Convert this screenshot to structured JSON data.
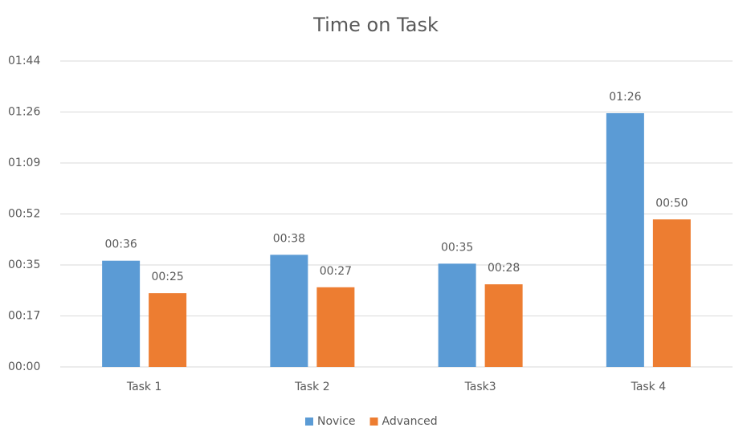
{
  "chart_data": {
    "type": "bar",
    "title": "Time on Task",
    "categories": [
      "Task 1",
      "Task 2",
      "Task3",
      "Task 4"
    ],
    "series": [
      {
        "name": "Novice",
        "color": "#5b9bd5",
        "values": [
          36,
          38,
          35,
          86
        ],
        "value_labels": [
          "00:36",
          "00:38",
          "00:35",
          "01:26"
        ]
      },
      {
        "name": "Advanced",
        "color": "#ed7d31",
        "values": [
          25,
          27,
          28,
          50
        ],
        "value_labels": [
          "00:25",
          "00:27",
          "00:28",
          "00:50"
        ]
      }
    ],
    "ylim": [
      0,
      103.68
    ],
    "yticks": [
      {
        "value": 0,
        "label": "00:00"
      },
      {
        "value": 17.28,
        "label": "00:17"
      },
      {
        "value": 34.56,
        "label": "00:35"
      },
      {
        "value": 51.84,
        "label": "00:52"
      },
      {
        "value": 69.12,
        "label": "01:09"
      },
      {
        "value": 86.4,
        "label": "01:26"
      },
      {
        "value": 103.68,
        "label": "01:44"
      }
    ],
    "grid": true,
    "legend": "bottom"
  }
}
